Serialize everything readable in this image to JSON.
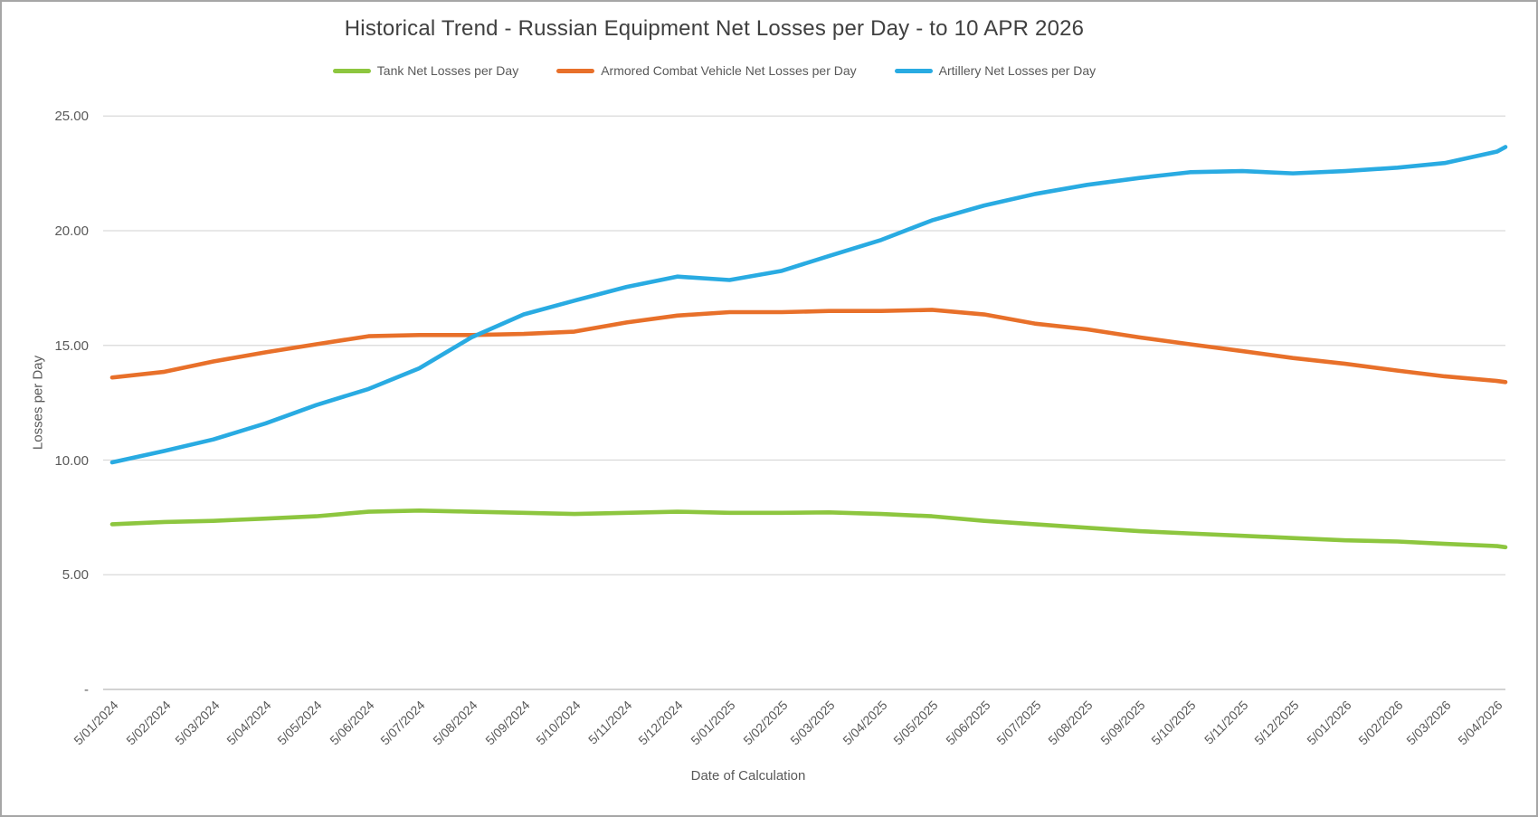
{
  "title": "Historical Trend - Russian Equipment Net Losses per Day - to 10 APR 2026",
  "legend": [
    {
      "label": "Tank Net Losses per Day",
      "color": "#8dc63f"
    },
    {
      "label": "Armored Combat Vehicle Net Losses per Day",
      "color": "#e8702a"
    },
    {
      "label": "Artillery Net Losses per Day",
      "color": "#29abe2"
    }
  ],
  "y_axis": {
    "title": "Losses per Day",
    "ticks": [
      "25.00",
      "20.00",
      "15.00",
      "10.00",
      "5.00",
      "-"
    ]
  },
  "x_axis": {
    "title": "Date of Calculation",
    "labels": [
      "5/01/2024",
      "5/02/2024",
      "5/03/2024",
      "5/04/2024",
      "5/05/2024",
      "5/06/2024",
      "5/07/2024",
      "5/08/2024",
      "5/09/2024",
      "5/10/2024",
      "5/11/2024",
      "5/12/2024",
      "5/01/2025",
      "5/02/2025",
      "5/03/2025",
      "5/04/2025",
      "5/05/2025",
      "5/06/2025",
      "5/07/2025",
      "5/08/2025",
      "5/09/2025",
      "5/10/2025",
      "5/11/2025",
      "5/12/2025",
      "5/01/2026",
      "5/02/2026",
      "5/03/2026",
      "5/04/2026"
    ]
  },
  "chart_data": {
    "type": "line",
    "title": "Historical Trend - Russian Equipment Net Losses per Day - to 10 APR 2026",
    "xlabel": "Date of Calculation",
    "ylabel": "Losses per Day",
    "ylim": [
      0,
      25
    ],
    "ytick_step": 5,
    "grid": true,
    "legend_position": "top",
    "x_date_format": "D/MM/YYYY",
    "x": [
      "5/01/2024",
      "5/02/2024",
      "5/03/2024",
      "5/04/2024",
      "5/05/2024",
      "5/06/2024",
      "5/07/2024",
      "5/08/2024",
      "5/09/2024",
      "5/10/2024",
      "5/11/2024",
      "5/12/2024",
      "5/01/2025",
      "5/02/2025",
      "5/03/2025",
      "5/04/2025",
      "5/05/2025",
      "5/06/2025",
      "5/07/2025",
      "5/08/2025",
      "5/09/2025",
      "5/10/2025",
      "5/11/2025",
      "5/12/2025",
      "5/01/2026",
      "5/02/2026",
      "5/03/2026",
      "5/04/2026",
      "10/04/2026"
    ],
    "series": [
      {
        "name": "Tank Net Losses per Day",
        "color": "#8dc63f",
        "values": [
          7.2,
          7.3,
          7.35,
          7.45,
          7.55,
          7.75,
          7.8,
          7.75,
          7.7,
          7.65,
          7.7,
          7.75,
          7.7,
          7.7,
          7.72,
          7.65,
          7.55,
          7.35,
          7.2,
          7.05,
          6.9,
          6.8,
          6.7,
          6.6,
          6.5,
          6.45,
          6.35,
          6.25,
          6.2
        ]
      },
      {
        "name": "Armored Combat Vehicle Net Losses per Day",
        "color": "#e8702a",
        "values": [
          13.6,
          13.85,
          14.3,
          14.7,
          15.05,
          15.4,
          15.45,
          15.45,
          15.5,
          15.6,
          16.0,
          16.3,
          16.45,
          16.45,
          16.5,
          16.5,
          16.55,
          16.35,
          15.95,
          15.7,
          15.35,
          15.05,
          14.75,
          14.45,
          14.2,
          13.9,
          13.65,
          13.45,
          13.4
        ]
      },
      {
        "name": "Artillery Net Losses per Day",
        "color": "#29abe2",
        "values": [
          9.9,
          10.4,
          10.9,
          11.6,
          12.4,
          13.1,
          14.0,
          15.35,
          16.35,
          16.95,
          17.55,
          18.0,
          17.85,
          18.25,
          18.9,
          19.6,
          20.45,
          21.1,
          21.6,
          22.0,
          22.3,
          22.55,
          22.6,
          22.5,
          22.6,
          22.75,
          22.95,
          23.45,
          23.65
        ]
      }
    ]
  }
}
